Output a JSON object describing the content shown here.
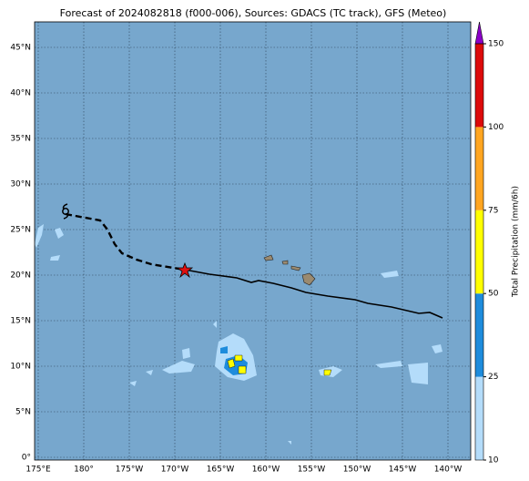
{
  "title": "Forecast of 2024082818 (f000-006), Sources: GDACS (TC track), GFS (Meteo)",
  "lat_labels": [
    "0°",
    "5°N",
    "10°N",
    "15°N",
    "20°N",
    "25°N",
    "30°N",
    "35°N",
    "40°N",
    "45°N"
  ],
  "lon_labels": [
    "175°E",
    "180°",
    "175°W",
    "170°W",
    "165°W",
    "160°W",
    "155°W",
    "150°W",
    "145°W",
    "140°W"
  ],
  "colorbar": {
    "label": "Total Precipitation (mm/6h)",
    "ticks": [
      10,
      25,
      50,
      75,
      100,
      150
    ],
    "colors": [
      "#b4dcfa",
      "#1e8cdc",
      "#ffff00",
      "#ffa520",
      "#dc0a0a"
    ],
    "extend_color": "#8c00c8"
  }
}
